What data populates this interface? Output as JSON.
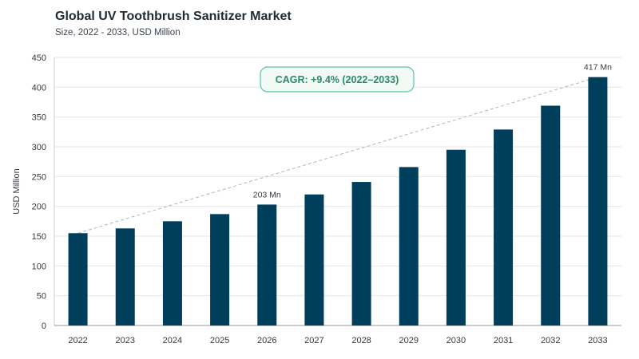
{
  "header": {
    "title": "Global UV Toothbrush Sanitizer Market",
    "subtitle": "Size, 2022 - 2033, USD Million"
  },
  "annotation": {
    "cagr": "CAGR: +9.4% (2022–2033)"
  },
  "colors": {
    "bar": "#003f5c",
    "grid": "#e6e6e6",
    "trend": "#b5b5b5",
    "cagr_border": "#5cc3a0",
    "cagr_fill": "#f2faf6",
    "cagr_text": "#2b8a6a"
  },
  "chart_data": {
    "type": "bar",
    "title": "Global UV Toothbrush Sanitizer Market",
    "subtitle": "Size, 2022 - 2033, USD Million",
    "xlabel": "",
    "ylabel": "USD Million",
    "ylim": [
      0,
      450
    ],
    "yticks": [
      0,
      50,
      100,
      150,
      200,
      250,
      300,
      350,
      400,
      450
    ],
    "categories": [
      "2022",
      "2023",
      "2024",
      "2025",
      "2026",
      "2027",
      "2028",
      "2029",
      "2030",
      "2031",
      "2032",
      "2033"
    ],
    "values": [
      155,
      163,
      175,
      187,
      203,
      220,
      241,
      266,
      295,
      329,
      369,
      417
    ],
    "data_labels": [
      {
        "category": "2026",
        "text": "203 Mn"
      },
      {
        "category": "2033",
        "text": "417 Mn"
      }
    ],
    "grid": true,
    "legend": "none"
  }
}
